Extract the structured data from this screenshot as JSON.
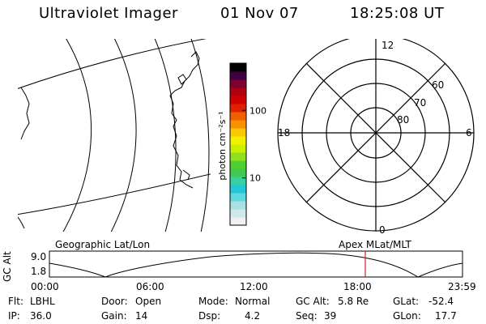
{
  "header": {
    "title": "Ultraviolet Imager",
    "date": "01 Nov 07",
    "time": "18:25:08 UT"
  },
  "colorbar": {
    "unit_label": "photon cm⁻²s⁻¹",
    "scale": "log",
    "tick_labels": [
      "100",
      "10"
    ],
    "tick_values": [
      100,
      10
    ],
    "range": [
      2,
      500
    ],
    "colors": [
      "#f0f0f0",
      "#d0e8ec",
      "#a8e0e4",
      "#60d8e0",
      "#20c8d8",
      "#38d0a0",
      "#40c850",
      "#50d030",
      "#90e020",
      "#c8f000",
      "#f0f000",
      "#f8c800",
      "#f89000",
      "#f06000",
      "#e02000",
      "#d00000",
      "#b00010",
      "#800030",
      "#400040",
      "#000000"
    ]
  },
  "polar_plot": {
    "mlt_labels": {
      "top": "12",
      "left": "18",
      "right": "6",
      "bottom": "0"
    },
    "lat_labels": [
      "60",
      "70",
      "80"
    ]
  },
  "timeline": {
    "y_axis_label": "GC Alt",
    "y_ticks": [
      "9.0",
      "1.8"
    ],
    "left_caption": "Geographic Lat/Lon",
    "right_caption": "Apex MLat/MLT",
    "x_ticks": [
      "00:00",
      "06:00",
      "12:00",
      "18:00",
      "23:59"
    ],
    "marker_color": "#d02020"
  },
  "info": {
    "filter_label": "Flt:",
    "filter_value": "LBHL",
    "ip_label": "IP:",
    "ip_value": "36.0",
    "door_label": "Door:",
    "door_value": "Open",
    "gain_label": "Gain:",
    "gain_value": "14",
    "mode_label": "Mode:",
    "mode_value": "Normal",
    "dsp_label": "Dsp:",
    "dsp_value": "4.2",
    "gcalt_label": "GC Alt:",
    "gcalt_value": "5.8 Re",
    "seq_label": "Seq:",
    "seq_value": "39",
    "glat_label": "GLat:",
    "glat_value": "-52.4",
    "glon_label": "GLon:",
    "glon_value": "17.7"
  }
}
